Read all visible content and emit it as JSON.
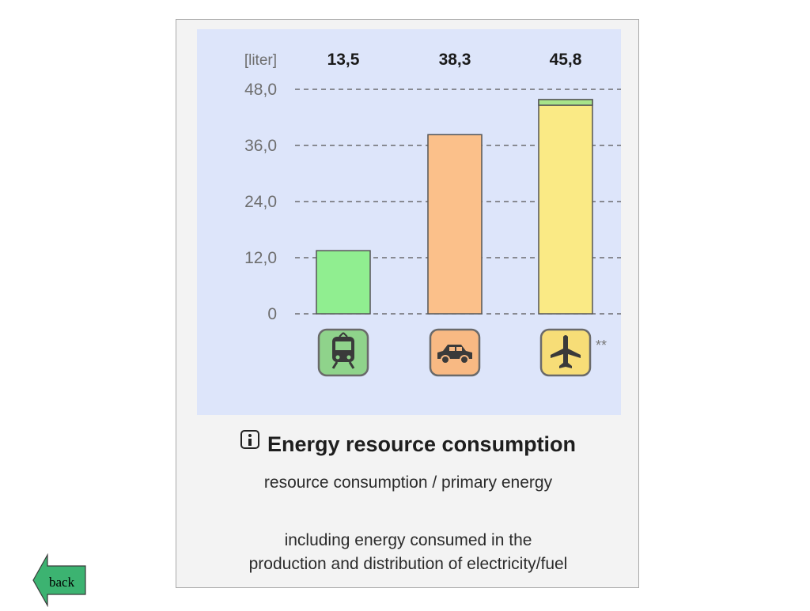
{
  "chart_data": {
    "type": "bar",
    "title": "Energy resource consumption",
    "ylabel": "[liter]",
    "ylim": [
      0,
      48
    ],
    "yticks": [
      "0",
      "12,0",
      "24,0",
      "36,0",
      "48,0"
    ],
    "categories": [
      "train-icon",
      "car-icon",
      "airplane-icon"
    ],
    "values": [
      13.5,
      38.3,
      45.8
    ],
    "value_labels": [
      "13,5",
      "38,3",
      "45,8"
    ],
    "stacked_top": [
      null,
      null,
      1.2
    ],
    "grid": true,
    "note_marker": "**",
    "colors": {
      "train": "#90ee90",
      "car": "#fbc08a",
      "airplane": "#faea85",
      "airplane_top": "#a6e389",
      "plot_background": "#dde5fa",
      "train_icon_bg": "#8fd38b",
      "car_icon_bg": "#f8b983",
      "airplane_icon_bg": "#f7dd77"
    }
  },
  "caption": {
    "title": "Energy resource consumption",
    "subtitle": "resource consumption / primary energy",
    "note_line1": "including energy consumed in the",
    "note_line2": "production and distribution of electricity/fuel"
  },
  "nav": {
    "back_label": "back",
    "back_color": "#3cb371"
  }
}
